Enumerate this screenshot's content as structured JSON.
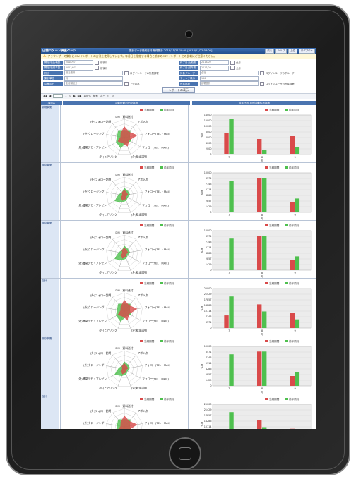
{
  "app": {
    "title": "店舗パターン調査ページ",
    "status": "集計データ最終日時 最終集計 2018/11/21 18:00 [2018/11/22 03:00]",
    "buttons": [
      "戻る",
      "ヘルプ",
      "上位",
      "ログアウト"
    ]
  },
  "notice": {
    "text": "アラウンザーの集計にCSVインポートの方法を使用しています。年月日を指定する場合と前年のCSVインポートとの比較にご注意ください。"
  },
  "filters": [
    {
      "left_label": "開始月(比較集計)",
      "left_value": "2018/07",
      "left_check": "前後月",
      "right_label": "終了月(比較集計)",
      "right_value": "2018/09",
      "right_check": "全月"
    },
    {
      "left_label": "開始月(前年集計)",
      "left_value": "2017/07",
      "left_check": "前後月",
      "right_label": "終了月(前年集計)",
      "right_value": "2017/09",
      "right_check": "全月"
    },
    {
      "left_label": "担当",
      "left_value": "担当選択",
      "left_check": "ログインユーザの所属部署",
      "right_label": "対象グループ",
      "right_value": "全社",
      "right_check": "ログインユーザのグループ"
    },
    {
      "left_label": "集計単位",
      "left_value": "月",
      "left_check": "",
      "right_label": "チェック表示",
      "right_value": "100",
      "right_check": ""
    },
    {
      "left_label": "店舗区分",
      "left_value": "全店舗区分",
      "left_check": "上位のみ",
      "right_label": "所属部署",
      "right_value": "部署選択",
      "right_check": "ログインユーザの所属部署"
    }
  ],
  "report_button": "レポートの表示",
  "pager": {
    "page": "1",
    "of": "/3",
    "zoom": "100%",
    "find": "検索",
    "next": "次へ"
  },
  "table": {
    "col1": "項目名",
    "col2": "活動行動別比較推移",
    "col3": "前年比較 月別活動件数推移"
  },
  "radar_labels": [
    "DM・資料送付",
    "アポ入れ",
    "フォロー(TEL・Mail)",
    "フォロー(TEL・MAIL)",
    "(外)総金説明",
    "(外)ヒアリング",
    "(外)通常デモ・プレゼン",
    "(外)クロージング",
    "(外)フォロー訪問"
  ],
  "legend": {
    "current": "当期期間",
    "previous": "前年同月"
  },
  "colors": {
    "current": "#d94a4a",
    "previous": "#4ec04e",
    "header": "#4a74b0"
  },
  "rows": [
    {
      "label": "新規事業",
      "radar_cur": [
        0.6,
        0.4,
        0.7,
        0.3,
        0.5,
        0.3,
        0.4,
        0.2,
        0.3
      ],
      "radar_prev": [
        0.4,
        0.5,
        0.3,
        0.4,
        0.3,
        0.6,
        0.5,
        0.4,
        0.5
      ]
    },
    {
      "label": "既存事業",
      "radar_cur": [
        0.3,
        0.2,
        0.2,
        0.1,
        0.2,
        0.3,
        0.2,
        0.1,
        0.2
      ],
      "radar_prev": [
        0.4,
        0.3,
        0.3,
        0.2,
        0.3,
        0.4,
        0.6,
        0.3,
        0.2
      ]
    },
    {
      "label": "既存事業",
      "radar_cur": [
        0.3,
        0.2,
        0.2,
        0.1,
        0.2,
        0.3,
        0.2,
        0.1,
        0.2
      ],
      "radar_prev": [
        0.4,
        0.3,
        0.3,
        0.2,
        0.3,
        0.4,
        0.6,
        0.3,
        0.2
      ]
    },
    {
      "label": "合計",
      "radar_cur": [
        0.6,
        0.4,
        0.7,
        0.3,
        0.5,
        0.3,
        0.4,
        0.2,
        0.3
      ],
      "radar_prev": [
        0.4,
        0.5,
        0.3,
        0.4,
        0.3,
        0.6,
        0.5,
        0.4,
        0.5
      ]
    },
    {
      "label": "既存事業",
      "radar_cur": [
        0.3,
        0.2,
        0.2,
        0.1,
        0.2,
        0.3,
        0.2,
        0.1,
        0.2
      ],
      "radar_prev": [
        0.4,
        0.3,
        0.3,
        0.2,
        0.3,
        0.4,
        0.6,
        0.3,
        0.2
      ]
    },
    {
      "label": "合計",
      "radar_cur": [
        0.6,
        0.4,
        0.7,
        0.3,
        0.5,
        0.3,
        0.4,
        0.2,
        0.3
      ],
      "radar_prev": [
        0.4,
        0.5,
        0.3,
        0.4,
        0.3,
        0.6,
        0.5,
        0.4,
        0.5
      ]
    }
  ],
  "chart_data": [
    {
      "type": "bar",
      "categories": [
        "7",
        "8",
        "9"
      ],
      "xlabel": "月",
      "ylabel": "件数",
      "ylim": [
        0,
        14000
      ],
      "series": [
        {
          "name": "当期期間",
          "values": [
            7500,
            5500,
            6500
          ]
        },
        {
          "name": "前年同月",
          "values": [
            12500,
            1500,
            2500
          ]
        }
      ]
    },
    {
      "type": "bar",
      "categories": [
        "7",
        "8",
        "9"
      ],
      "xlabel": "月",
      "ylabel": "件数",
      "ylim": [
        0,
        10000
      ],
      "series": [
        {
          "name": "当期期間",
          "values": [
            0,
            8700,
            2500
          ]
        },
        {
          "name": "前年同月",
          "values": [
            8000,
            8700,
            3500
          ]
        }
      ]
    },
    {
      "type": "bar",
      "categories": [
        "7",
        "8",
        "9"
      ],
      "xlabel": "月",
      "ylabel": "件数",
      "ylim": [
        0,
        10000
      ],
      "series": [
        {
          "name": "当期期間",
          "values": [
            0,
            8700,
            2500
          ]
        },
        {
          "name": "前年同月",
          "values": [
            8000,
            8700,
            3500
          ]
        }
      ]
    },
    {
      "type": "bar",
      "categories": [
        "7",
        "8",
        "9"
      ],
      "xlabel": "月",
      "ylabel": "件数",
      "ylim": [
        0,
        25000
      ],
      "series": [
        {
          "name": "当期期間",
          "values": [
            8000,
            15000,
            9500
          ]
        },
        {
          "name": "前年同月",
          "values": [
            20000,
            10500,
            5500
          ]
        }
      ]
    },
    {
      "type": "bar",
      "categories": [
        "7",
        "8",
        "9"
      ],
      "xlabel": "月",
      "ylabel": "件数",
      "ylim": [
        0,
        10000
      ],
      "series": [
        {
          "name": "当期期間",
          "values": [
            0,
            8700,
            2500
          ]
        },
        {
          "name": "前年同月",
          "values": [
            8000,
            8700,
            3500
          ]
        }
      ]
    },
    {
      "type": "bar",
      "categories": [
        "7",
        "8",
        "9"
      ],
      "xlabel": "月",
      "ylabel": "件数",
      "ylim": [
        0,
        25000
      ],
      "series": [
        {
          "name": "当期期間",
          "values": [
            8000,
            15000,
            9500
          ]
        },
        {
          "name": "前年同月",
          "values": [
            20000,
            10500,
            5500
          ]
        }
      ]
    }
  ]
}
